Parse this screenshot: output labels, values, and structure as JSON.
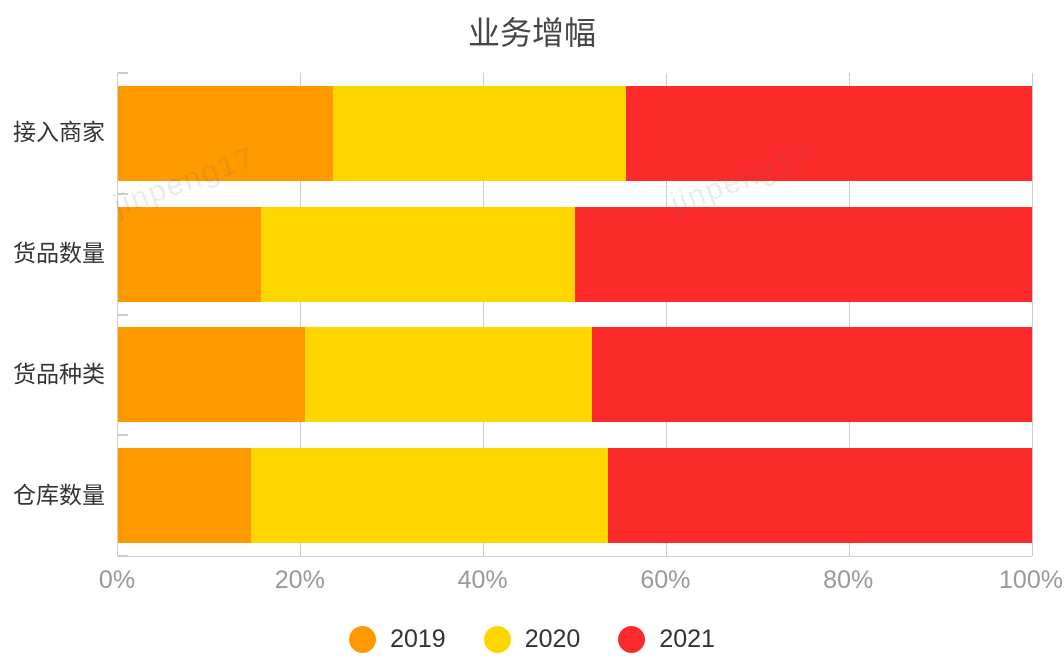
{
  "chart_data": {
    "type": "bar",
    "orientation": "horizontal",
    "stacked": true,
    "normalized": "percent",
    "title": "业务增幅",
    "categories": [
      "接入商家",
      "货品数量",
      "货品种类",
      "仓库数量"
    ],
    "series": [
      {
        "name": "2019",
        "color": "#FF9900",
        "values": [
          23.5,
          15.7,
          20.5,
          14.6
        ]
      },
      {
        "name": "2020",
        "color": "#FDD600",
        "values": [
          32.1,
          34.3,
          31.4,
          39.0
        ]
      },
      {
        "name": "2021",
        "color": "#FC2B2B",
        "values": [
          44.4,
          50.0,
          48.1,
          46.4
        ]
      }
    ],
    "x_ticks": [
      "0%",
      "20%",
      "40%",
      "60%",
      "80%",
      "100%"
    ],
    "x_tick_values": [
      0,
      20,
      40,
      60,
      80,
      100
    ],
    "xlim": [
      0,
      100
    ],
    "grid": true,
    "legend_position": "bottom",
    "colors_meta": {
      "title_text": "#464646",
      "category_text": "#333333",
      "axis_label_text": "#999999",
      "grid_line": "#cccccc"
    }
  },
  "watermark": {
    "text": "jinpeng17"
  }
}
